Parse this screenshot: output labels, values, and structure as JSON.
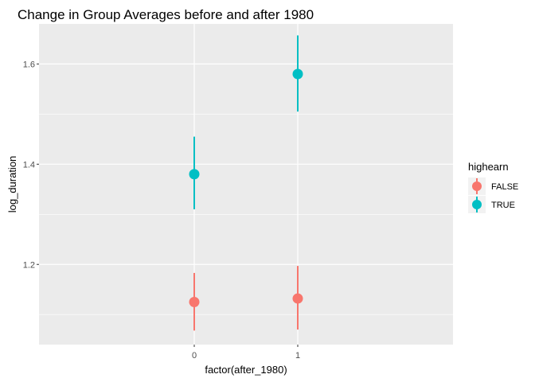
{
  "chart_data": {
    "type": "scatter",
    "title": "Change in Group Averages before and after 1980",
    "xlabel": "factor(after_1980)",
    "ylabel": "log_duration",
    "categories": [
      "0",
      "1"
    ],
    "ylim": [
      1.04,
      1.68
    ],
    "yticks": [
      1.2,
      1.4,
      1.6
    ],
    "grid": true,
    "legend": {
      "title": "highearn",
      "position": "right"
    },
    "series": [
      {
        "name": "FALSE",
        "color": "#F8766D",
        "values": [
          1.125,
          1.132
        ],
        "lower": [
          1.068,
          1.07
        ],
        "upper": [
          1.183,
          1.197
        ]
      },
      {
        "name": "TRUE",
        "color": "#00BFC4",
        "values": [
          1.38,
          1.58
        ],
        "lower": [
          1.31,
          1.505
        ],
        "upper": [
          1.455,
          1.657
        ]
      }
    ]
  }
}
